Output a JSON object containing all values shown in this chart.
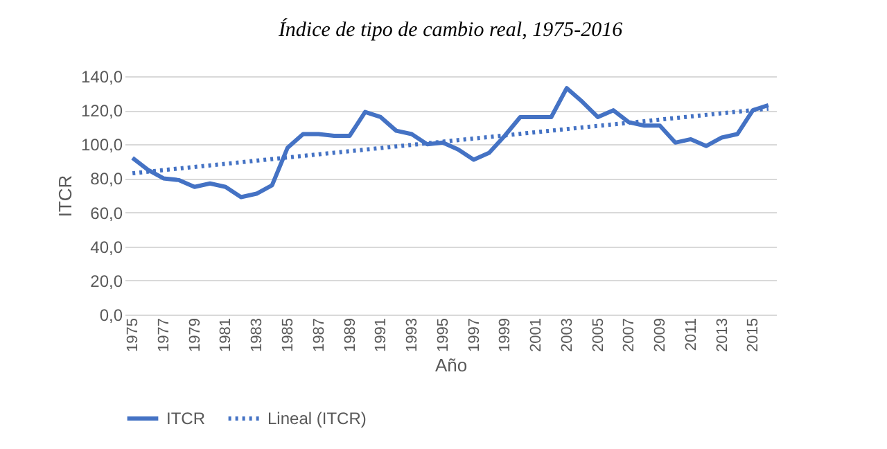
{
  "chart_data": {
    "type": "line",
    "title": "Índice de tipo de cambio real, 1975-2016",
    "xlabel": "Año",
    "ylabel": "ITCR",
    "x": [
      1975,
      1976,
      1977,
      1978,
      1979,
      1980,
      1981,
      1982,
      1983,
      1984,
      1985,
      1986,
      1987,
      1988,
      1989,
      1990,
      1991,
      1992,
      1993,
      1994,
      1995,
      1996,
      1997,
      1998,
      1999,
      2000,
      2001,
      2002,
      2003,
      2004,
      2005,
      2006,
      2007,
      2008,
      2009,
      2010,
      2011,
      2012,
      2013,
      2014,
      2015,
      2016
    ],
    "xlim": [
      1974.5,
      2016.5
    ],
    "xticks": [
      1975,
      1977,
      1979,
      1981,
      1983,
      1985,
      1987,
      1989,
      1991,
      1993,
      1995,
      1997,
      1999,
      2001,
      2003,
      2005,
      2007,
      2009,
      2011,
      2013,
      2015
    ],
    "ylim": [
      0,
      140
    ],
    "yticks": [
      {
        "value": 0,
        "label": "0,0"
      },
      {
        "value": 20,
        "label": "20,0"
      },
      {
        "value": 40,
        "label": "40,0"
      },
      {
        "value": 60,
        "label": "60,0"
      },
      {
        "value": 80,
        "label": "80,0"
      },
      {
        "value": 100,
        "label": "100,0"
      },
      {
        "value": 120,
        "label": "120,0"
      },
      {
        "value": 140,
        "label": "140,0"
      }
    ],
    "series": [
      {
        "name": "ITCR",
        "color": "#4472c4",
        "line_style": "solid",
        "values": [
          92,
          85,
          80,
          79,
          75,
          77,
          75,
          69,
          71,
          76,
          98,
          106,
          106,
          105,
          105,
          119,
          116,
          108,
          106,
          100,
          101,
          97,
          91,
          95,
          105,
          116,
          116,
          116,
          133,
          125,
          116,
          120,
          113,
          111,
          111,
          101,
          103,
          99,
          104,
          106,
          120,
          123
        ]
      },
      {
        "name": "Lineal (ITCR)",
        "type": "line",
        "color": "#4472c4",
        "line_style": "dotted",
        "x": [
          1975,
          2016
        ],
        "values": [
          83,
          121
        ]
      }
    ],
    "grid": "y",
    "legend": "bottom",
    "marker": "none"
  }
}
